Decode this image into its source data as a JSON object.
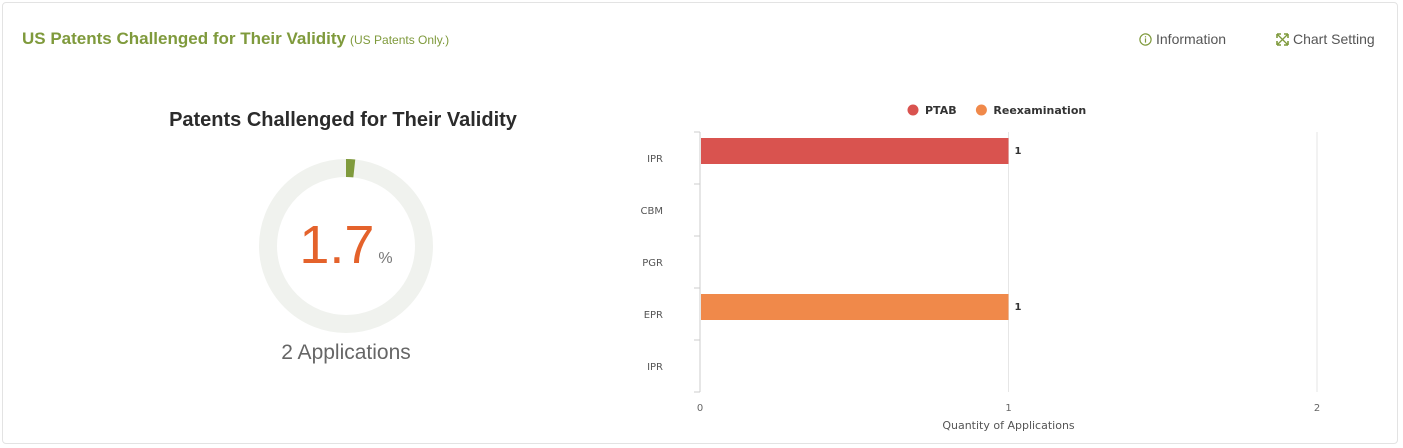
{
  "header": {
    "title": "US Patents Challenged for Their Validity",
    "subtitle": "(US Patents Only.)"
  },
  "toolbar": {
    "information_label": "Information",
    "information_icon": "info-circle-icon",
    "chart_setting_label": "Chart Setting",
    "chart_setting_icon": "expand-arrows-icon"
  },
  "kpi": {
    "title": "Patents Challenged for Their Validity",
    "value": "1.7",
    "unit": "%",
    "percent": 1.7,
    "subtitle": "2 Applications",
    "ring_color": "#7f9a3c",
    "track_color": "#f0f2ee",
    "value_color": "#e4622b"
  },
  "chart_data": {
    "type": "bar",
    "orientation": "horizontal",
    "categories": [
      "IPR",
      "CBM",
      "PGR",
      "EPR",
      "IPR"
    ],
    "series": [
      {
        "name": "PTAB",
        "color": "#d9534f",
        "values": [
          1,
          null,
          null,
          null,
          null
        ]
      },
      {
        "name": "Reexamination",
        "color": "#f0894a",
        "values": [
          null,
          null,
          null,
          1,
          null
        ]
      }
    ],
    "xlabel": "Quantity of Applications",
    "xlim": [
      0,
      2
    ],
    "xticks": [
      "0",
      "1",
      "2"
    ],
    "legend": "top-center",
    "grid": true
  }
}
